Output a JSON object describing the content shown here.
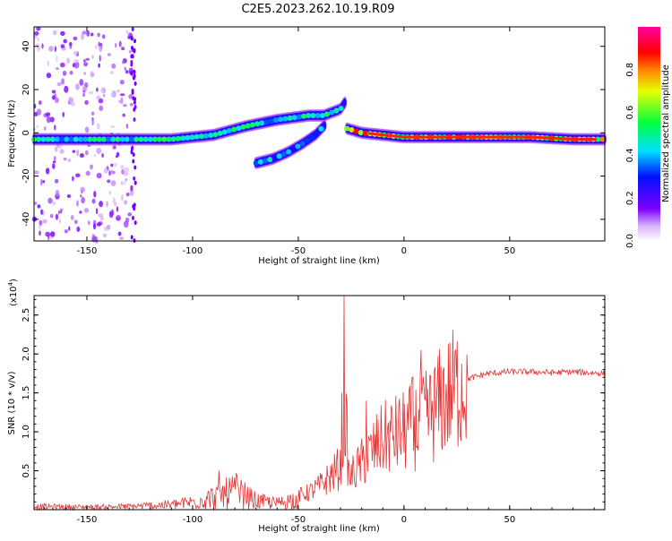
{
  "title": "C2E5.2023.262.10.19.R09",
  "chart_data": [
    {
      "type": "heatmap",
      "title": "C2E5.2023.262.10.19.R09",
      "xlabel": "Height of straight line (km)",
      "ylabel": "Frequency (Hz)",
      "xlim": [
        -175,
        95
      ],
      "ylim": [
        -50,
        49
      ],
      "xticks": [
        -150,
        -100,
        -50,
        0,
        50
      ],
      "yticks": [
        -40,
        -20,
        0,
        20,
        40
      ],
      "colorbar": {
        "label": "Normalized spectral amplitude",
        "range": [
          0,
          1
        ],
        "ticks": [
          0.0,
          0.2,
          0.4,
          0.6,
          0.8
        ],
        "tick_labels": [
          "0.0",
          "0.2",
          "0.4",
          "0.6",
          "0.8"
        ],
        "colormap": "rainbow (white-purple-blue-cyan-green-yellow-orange-red-magenta)"
      },
      "traces": [
        {
          "x": [
            -175,
            -150,
            -130,
            -110,
            -90,
            -75,
            -60,
            -45,
            -38,
            -30,
            -28
          ],
          "y": [
            -3,
            -3,
            -3,
            -3,
            -1,
            3,
            6,
            8,
            8,
            11,
            14
          ],
          "peak_amplitude": 0.55
        },
        {
          "x": [
            -70,
            -62,
            -55,
            -48,
            -42,
            -37
          ],
          "y": [
            -14,
            -12,
            -9,
            -5,
            -1,
            4
          ],
          "peak_amplitude": 0.45
        },
        {
          "x": [
            -27,
            -20,
            -10,
            0,
            10,
            30,
            60,
            80,
            95
          ],
          "y": [
            2,
            0,
            -1,
            -2,
            -2,
            -2,
            -2,
            -3,
            -3
          ],
          "peak_amplitude": 0.85
        }
      ],
      "noise_band": {
        "x_range": [
          -175,
          -128
        ],
        "description": "scattered low-amplitude speckle"
      }
    },
    {
      "type": "line",
      "xlabel": "Height of straight line (km)",
      "ylabel": "SNR (10 * v/v)",
      "y_multiplier": "(x10",
      "y_multiplier_exp": "4",
      "y_multiplier_close": ")",
      "xlim": [
        -175,
        95
      ],
      "ylim": [
        0,
        2.75
      ],
      "xticks": [
        -150,
        -100,
        -50,
        0,
        50
      ],
      "yticks": [
        0.5,
        1.0,
        1.5,
        2.0,
        2.5
      ],
      "ytick_labels": [
        "0.5",
        "1.0",
        "1.5",
        "2.0",
        "2.5"
      ],
      "color": "#e53333",
      "x": [
        -175,
        -150,
        -130,
        -110,
        -100,
        -90,
        -80,
        -70,
        -60,
        -50,
        -45,
        -40,
        -35,
        -30,
        -28,
        -26,
        -20,
        -10,
        0,
        10,
        20,
        30,
        40,
        50,
        60,
        70,
        80,
        95
      ],
      "y": [
        0.05,
        0.04,
        0.05,
        0.08,
        0.12,
        0.2,
        0.3,
        0.14,
        0.1,
        0.18,
        0.22,
        0.3,
        0.42,
        0.55,
        1.3,
        0.4,
        0.6,
        0.9,
        1.0,
        1.15,
        1.45,
        1.68,
        1.75,
        1.77,
        1.77,
        1.76,
        1.77,
        1.75
      ],
      "spikes": [
        {
          "x": -87.5,
          "y": 0.5
        },
        {
          "x": -79,
          "y": 0.45
        },
        {
          "x": -28.5,
          "y": 2.75
        },
        {
          "x": -29.5,
          "y": 1.5
        },
        {
          "x": -27,
          "y": 1.38
        },
        {
          "x": 8,
          "y": 2.05
        },
        {
          "x": 4,
          "y": 1.7
        },
        {
          "x": -18,
          "y": 1.4
        }
      ]
    }
  ]
}
